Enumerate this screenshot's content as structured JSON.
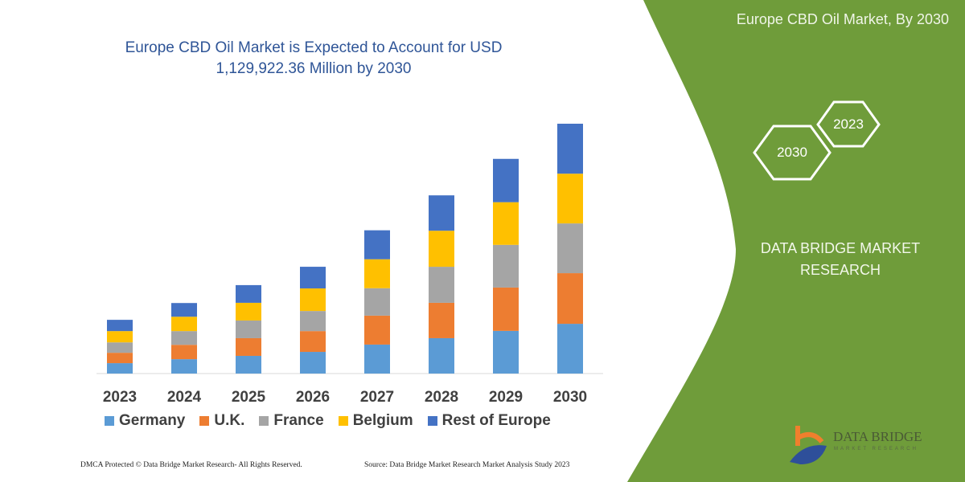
{
  "title": "Europe CBD Oil Market is Expected to Account for USD 1,129,922.36 Million by 2030",
  "panel": {
    "title": "Europe CBD Oil Market, By 2030",
    "hex_years": [
      "2030",
      "2023"
    ],
    "brand": "DATA BRIDGE MARKET RESEARCH",
    "logo_text": "DATA BRIDGE",
    "logo_sub": "MARKET RESEARCH",
    "color": "#6f9c3a"
  },
  "footer": {
    "left": "DMCA Protected © Data Bridge Market Research-  All Rights Reserved.",
    "right": "Source: Data Bridge Market Research  Market Analysis Study 2023"
  },
  "chart_data": {
    "type": "bar",
    "stacked": true,
    "title": "Europe CBD Oil Market is Expected to Account for USD 1,129,922.36 Million by 2030",
    "xlabel": "",
    "ylabel": "",
    "categories": [
      "2023",
      "2024",
      "2025",
      "2026",
      "2027",
      "2028",
      "2029",
      "2030"
    ],
    "series": [
      {
        "name": "Germany",
        "color": "#5b9bd5",
        "values": [
          47000,
          65000,
          80000,
          98000,
          131000,
          160000,
          193000,
          225000
        ]
      },
      {
        "name": "U.K.",
        "color": "#ed7d31",
        "values": [
          47000,
          65000,
          80000,
          94000,
          131000,
          160000,
          196000,
          229000
        ]
      },
      {
        "name": "France",
        "color": "#a5a5a5",
        "values": [
          47000,
          62000,
          80000,
          91000,
          124000,
          163000,
          193000,
          225000
        ]
      },
      {
        "name": "Belgium",
        "color": "#ffc000",
        "values": [
          51000,
          65000,
          80000,
          102000,
          131000,
          163000,
          193000,
          225000
        ]
      },
      {
        "name": "Rest of Europe",
        "color": "#4472c4",
        "values": [
          51000,
          62000,
          80000,
          98000,
          131000,
          160000,
          196000,
          226000
        ]
      }
    ],
    "ylim": [
      0,
      1130000
    ],
    "y_axis_visible": false,
    "grid": false,
    "legend": "bottom"
  }
}
